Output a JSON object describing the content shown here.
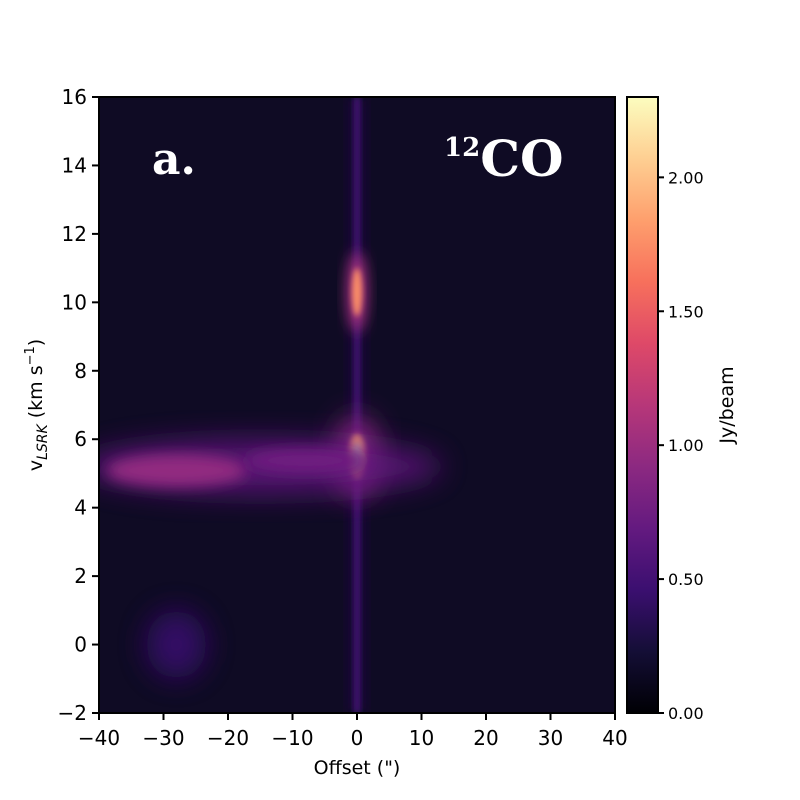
{
  "chart_data": {
    "type": "heatmap",
    "panel_label": "a.",
    "molecule": {
      "sup": "12",
      "name": "CO"
    },
    "xlabel": "Offset (\")",
    "ylabel": {
      "main": "v",
      "sub": "LSRK",
      "unit_open": " (km s",
      "unit_exp": "−1",
      "unit_close": ")"
    },
    "xlim": [
      -40,
      40
    ],
    "ylim": [
      -2,
      16
    ],
    "x_ticks": [
      -40,
      -30,
      -20,
      -10,
      0,
      10,
      20,
      30,
      40
    ],
    "x_tick_labels": [
      "−40",
      "−30",
      "−20",
      "−10",
      "0",
      "10",
      "20",
      "30",
      "40"
    ],
    "y_ticks": [
      -2,
      0,
      2,
      4,
      6,
      8,
      10,
      12,
      14,
      16
    ],
    "y_tick_labels": [
      "−2",
      "0",
      "2",
      "4",
      "6",
      "8",
      "10",
      "12",
      "14",
      "16"
    ],
    "colorbar": {
      "label": "Jy/beam",
      "range": [
        0,
        2.3
      ],
      "ticks": [
        0,
        0.5,
        1.0,
        1.5,
        2.0
      ],
      "tick_labels": [
        "0.00",
        "0.50",
        "1.00",
        "1.50",
        "2.00"
      ],
      "colormap": "magma"
    },
    "emission_features": [
      {
        "name": "central-vertical-stripe",
        "x": 0,
        "y_range": [
          -2,
          16
        ],
        "peak": 0.5
      },
      {
        "name": "bright-peak-upper",
        "x": 0,
        "y": 10.3,
        "peak": 1.75
      },
      {
        "name": "bright-peak-main",
        "x": 0,
        "y": 5.5,
        "peak": 2.3
      },
      {
        "name": "horizontal-band",
        "x_range": [
          -40,
          10
        ],
        "y": 5.2,
        "peak": 0.95
      },
      {
        "name": "diffuse-lobe",
        "x": -28,
        "y": 0,
        "peak": 0.45
      }
    ]
  }
}
